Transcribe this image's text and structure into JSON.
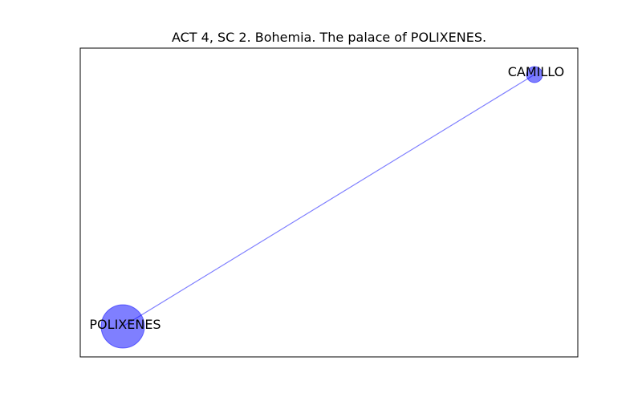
{
  "title": "ACT 4, SC 2. Bohemia. The palace of POLIXENES.",
  "colors": {
    "node_fill": "#0000ff",
    "edge": "#0000ff",
    "frame": "#000000"
  },
  "nodes": [
    {
      "id": "POLIXENES",
      "label": "POLIXENES",
      "size": "large"
    },
    {
      "id": "CAMILLO",
      "label": "CAMILLO",
      "size": "small"
    }
  ],
  "edges": [
    {
      "source": "POLIXENES",
      "target": "CAMILLO"
    }
  ]
}
